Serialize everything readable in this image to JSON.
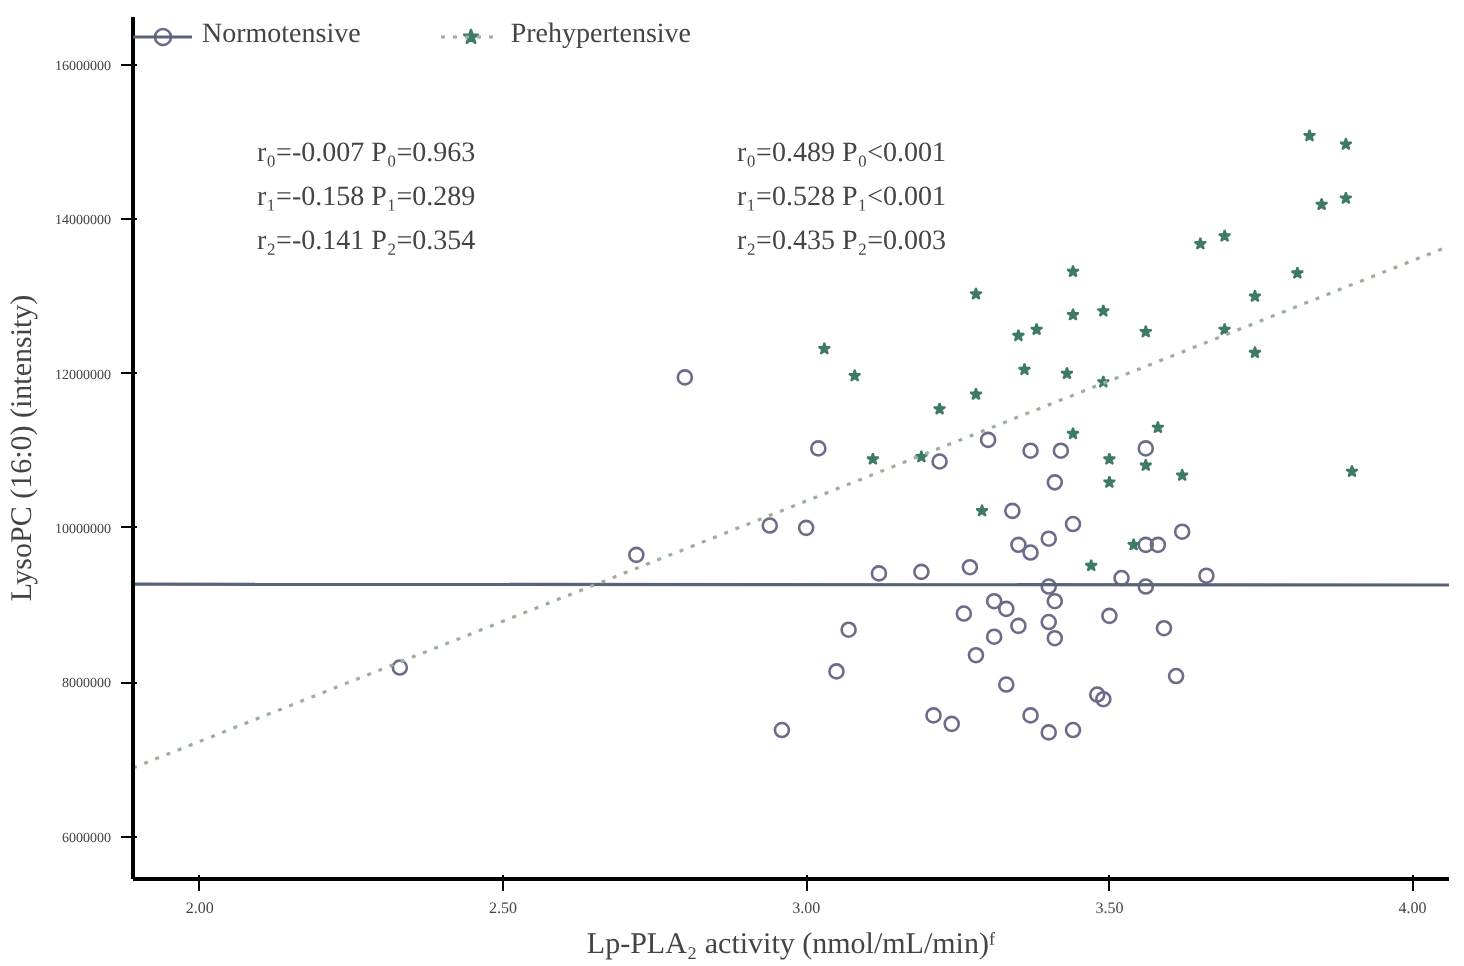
{
  "chart_data": {
    "type": "scatter",
    "xlabel": "Lp-PLA₂ activity (nmol/mL/min)ᶠ",
    "ylabel": "LysoPC (16:0) (intensity)",
    "xlim": [
      1.89,
      4.06
    ],
    "xticks": [
      {
        "value": 2,
        "label": "2.00"
      },
      {
        "value": 2.5,
        "label": "2.50"
      },
      {
        "value": 3,
        "label": "3.00"
      },
      {
        "value": 3.5,
        "label": "3.50"
      },
      {
        "value": 4,
        "label": "4.00"
      }
    ],
    "ylim": [
      5450000,
      16620000
    ],
    "yticks": [
      6000000,
      8000000,
      10000000,
      12000000,
      14000000,
      16000000
    ],
    "grid": false,
    "legend": "top left",
    "series": [
      {
        "name": "Normotensive",
        "marker": "circle",
        "color": "#6b6b8a",
        "x": [
          2.33,
          2.72,
          2.8,
          3.02,
          3.22,
          3.3,
          3.37,
          3.42,
          3.56,
          3.41,
          2.94,
          3.0,
          3.12,
          3.19,
          3.27,
          3.07,
          3.05,
          2.96,
          3.21,
          3.24,
          3.26,
          3.31,
          3.33,
          3.35,
          3.28,
          3.31,
          3.33,
          3.37,
          3.4,
          3.44,
          3.48,
          3.49,
          3.5,
          3.4,
          3.41,
          3.4,
          3.41,
          3.52,
          3.56,
          3.59,
          3.61,
          3.66,
          3.58,
          3.62,
          3.56,
          3.34,
          3.35,
          3.37,
          3.4,
          3.44
        ],
        "values": [
          8190000,
          9650000,
          11950000,
          11030000,
          10860000,
          11140000,
          11000000,
          11000000,
          11030000,
          10590000,
          10030000,
          10000000,
          9410000,
          9430000,
          9490000,
          8680000,
          8140000,
          7380000,
          7570000,
          7460000,
          8890000,
          9050000,
          8950000,
          8730000,
          8350000,
          8590000,
          7970000,
          7570000,
          7350000,
          7380000,
          7840000,
          7780000,
          8860000,
          8780000,
          8570000,
          9240000,
          9050000,
          9350000,
          9240000,
          8700000,
          8080000,
          9380000,
          9780000,
          9950000,
          9780000,
          10220000,
          9780000,
          9680000,
          9860000,
          10050000
        ]
      },
      {
        "name": "Prehypertensive",
        "marker": "star",
        "color": "#3f7a68",
        "x": [
          3.83,
          3.89,
          3.85,
          3.89,
          3.65,
          3.69,
          3.81,
          3.44,
          3.28,
          3.74,
          3.44,
          3.49,
          3.35,
          3.38,
          3.56,
          3.03,
          3.08,
          3.36,
          3.43,
          3.49,
          3.69,
          3.74,
          3.28,
          3.22,
          3.11,
          3.19,
          3.44,
          3.5,
          3.56,
          3.58,
          3.62,
          3.9,
          3.5,
          3.29,
          3.54,
          3.47
        ],
        "values": [
          15080000,
          14970000,
          14190000,
          14270000,
          13680000,
          13780000,
          13300000,
          13320000,
          13030000,
          13000000,
          12760000,
          12810000,
          12490000,
          12570000,
          12540000,
          12320000,
          11970000,
          12050000,
          12000000,
          11890000,
          12570000,
          12270000,
          11730000,
          11540000,
          10890000,
          10920000,
          11220000,
          10890000,
          10810000,
          11300000,
          10680000,
          10730000,
          10590000,
          10220000,
          9780000,
          9510000
        ]
      },
      {
        "type": "line",
        "line_style": "solid",
        "color": "#5a6478",
        "x": [
          1.89,
          4.06
        ],
        "values": [
          9270000,
          9260000
        ]
      },
      {
        "type": "line",
        "line_style": "dotted",
        "color": "#9bb09b",
        "x": [
          1.89,
          4.06
        ],
        "values": [
          6890000,
          13650000
        ]
      }
    ],
    "annotations": [
      "r₀=-0.007   P₀=0.963",
      "r₁=-0.158   P₁=0.289",
      "r₂=-0.141   P₂=0.354",
      "r₀=0.489   P₀<0.001",
      "r₁=0.528   P₁<0.001",
      "r₂=0.435   P₂=0.003"
    ]
  }
}
